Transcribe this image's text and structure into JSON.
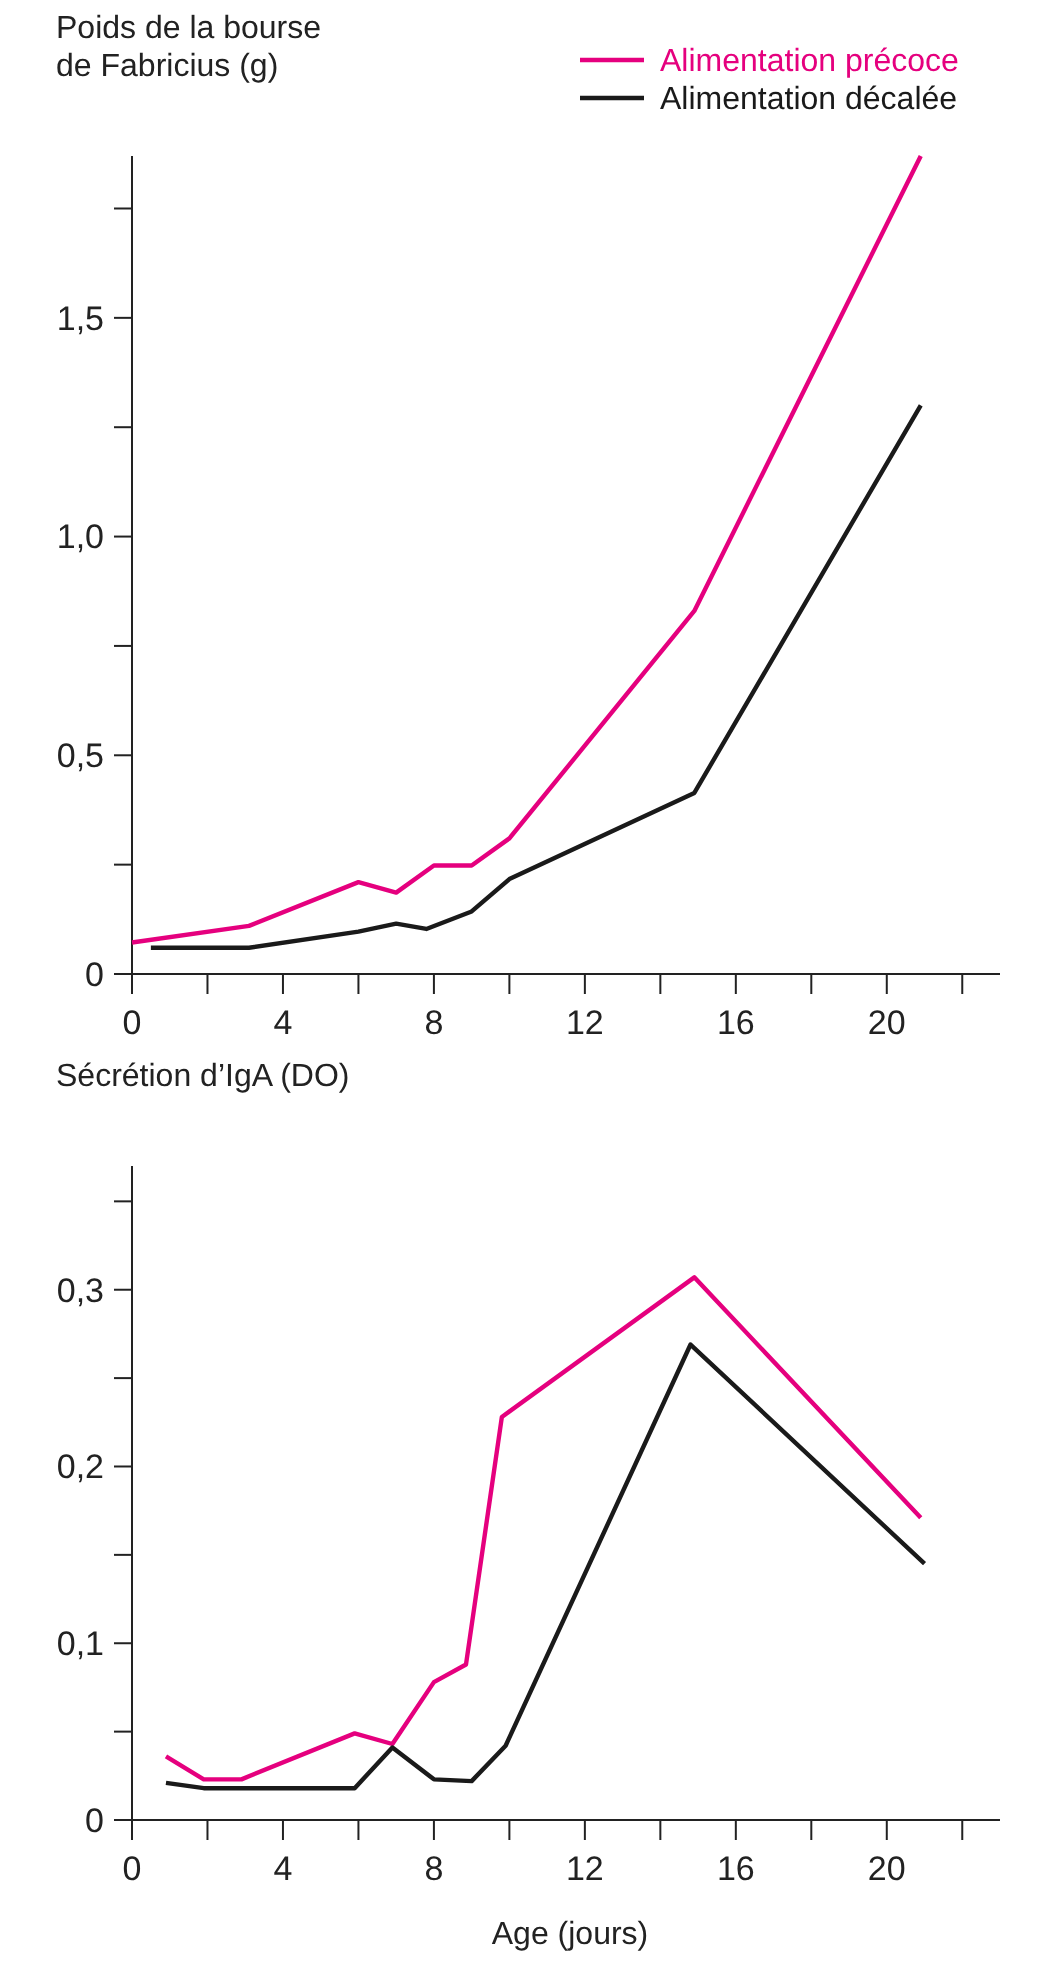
{
  "chart_data": [
    {
      "type": "line",
      "ylabel": "Poids de la bourse\nde Fabricius (g)",
      "xlim": [
        0,
        23
      ],
      "xticks": [
        0,
        {
          "value": 2,
          "label": null
        },
        4,
        {
          "value": 6,
          "label": null
        },
        8,
        {
          "value": 10,
          "label": null
        },
        12,
        {
          "value": 14,
          "label": null
        },
        16,
        {
          "value": 18,
          "label": null
        },
        20,
        {
          "value": 22,
          "label": null
        }
      ],
      "ylim": [
        0,
        1.87
      ],
      "yticks": [
        0,
        {
          "value": 0.25,
          "label": null
        },
        {
          "value": 0.5,
          "label": "0,5"
        },
        {
          "value": 0.75,
          "label": null
        },
        {
          "value": 1,
          "label": "1,0"
        },
        {
          "value": 1.25,
          "label": null
        },
        {
          "value": 1.5,
          "label": "1,5"
        },
        {
          "value": 1.75,
          "label": null
        }
      ],
      "grid": false,
      "legend": "top right",
      "marker": "none",
      "line_style": "solid",
      "series": [
        {
          "name": "Alimentation précoce",
          "color": "#e5007e",
          "x": [
            0,
            3.1,
            6,
            7,
            8,
            9,
            10,
            14.9,
            20.9
          ],
          "values": [
            0.072,
            0.11,
            0.21,
            0.186,
            0.248,
            0.248,
            0.31,
            0.83,
            1.87
          ]
        },
        {
          "name": "Alimentation décalée",
          "color": "#1a1a1a",
          "x": [
            0.5,
            3.1,
            6,
            7,
            7.8,
            9,
            10,
            14.9,
            20.9
          ],
          "values": [
            0.06,
            0.06,
            0.097,
            0.115,
            0.103,
            0.143,
            0.217,
            0.414,
            1.3
          ]
        }
      ]
    },
    {
      "type": "line",
      "ylabel": "Sécrétion d’IgA (DO)",
      "xlabel": "Age (jours)",
      "xlim": [
        0,
        23
      ],
      "xticks": [
        0,
        {
          "value": 2,
          "label": null
        },
        4,
        {
          "value": 6,
          "label": null
        },
        8,
        {
          "value": 10,
          "label": null
        },
        12,
        {
          "value": 14,
          "label": null
        },
        16,
        {
          "value": 18,
          "label": null
        },
        20,
        {
          "value": 22,
          "label": null
        }
      ],
      "ylim": [
        0,
        0.37
      ],
      "yticks": [
        0,
        {
          "value": 0.05,
          "label": null
        },
        {
          "value": 0.1,
          "label": "0,1"
        },
        {
          "value": 0.15,
          "label": null
        },
        {
          "value": 0.2,
          "label": "0,2"
        },
        {
          "value": 0.25,
          "label": null
        },
        {
          "value": 0.3,
          "label": "0,3"
        },
        {
          "value": 0.35,
          "label": null
        }
      ],
      "grid": false,
      "marker": "none",
      "line_style": "solid",
      "series": [
        {
          "color": "#e5007e",
          "x": [
            0.9,
            1.9,
            2.9,
            5.9,
            6.9,
            8,
            8.85,
            9.8,
            14.9,
            20.9
          ],
          "values": [
            0.036,
            0.023,
            0.023,
            0.049,
            0.043,
            0.078,
            0.088,
            0.228,
            0.307,
            0.171
          ]
        },
        {
          "color": "#1a1a1a",
          "x": [
            0.9,
            1.9,
            5.9,
            6.9,
            8,
            9,
            9.9,
            14.8,
            21
          ],
          "values": [
            0.021,
            0.018,
            0.018,
            0.041,
            0.023,
            0.022,
            0.042,
            0.269,
            0.145
          ]
        }
      ]
    }
  ]
}
